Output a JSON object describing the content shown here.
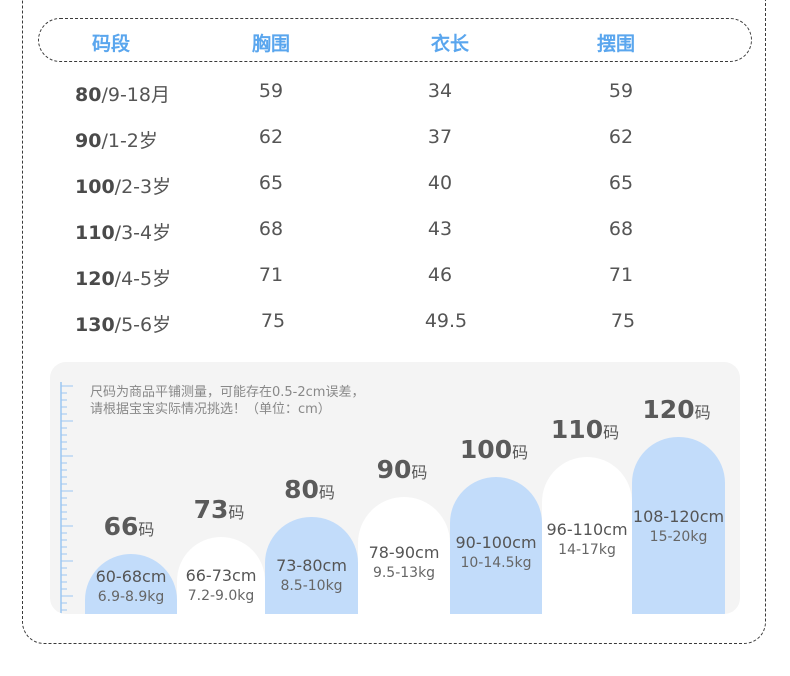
{
  "table": {
    "headers": [
      "码段",
      "胸围",
      "衣长",
      "摆围"
    ],
    "rows": [
      {
        "size": "80",
        "age": "/9-18月",
        "chest": "59",
        "length": "34",
        "hem": "59"
      },
      {
        "size": "90",
        "age": "/1-2岁",
        "chest": "62",
        "length": "37",
        "hem": "62"
      },
      {
        "size": "100",
        "age": "/2-3岁",
        "chest": "65",
        "length": "40",
        "hem": "65"
      },
      {
        "size": "110",
        "age": "/3-4岁",
        "chest": "68",
        "length": "43",
        "hem": "68"
      },
      {
        "size": "120",
        "age": "/4-5岁",
        "chest": "71",
        "length": "46",
        "hem": "71"
      },
      {
        "size": "130",
        "age": "/5-6岁",
        "chest": "75",
        "length": "49.5",
        "hem": "75"
      }
    ]
  },
  "chart": {
    "note_line1": "尺码为商品平铺测量，可能存在0.5-2cm误差，",
    "note_line2": "请根据宝宝实际情况挑选！（单位：cm）",
    "unit": "码",
    "bars": [
      {
        "code": "66",
        "range": "60-68cm",
        "weight": "6.9-8.9kg",
        "color": "#c2dcfa"
      },
      {
        "code": "73",
        "range": "66-73cm",
        "weight": "7.2-9.0kg",
        "color": "#ffffff"
      },
      {
        "code": "80",
        "range": "73-80cm",
        "weight": "8.5-10kg",
        "color": "#c2dcfa"
      },
      {
        "code": "90",
        "range": "78-90cm",
        "weight": "9.5-13kg",
        "color": "#ffffff"
      },
      {
        "code": "100",
        "range": "90-100cm",
        "weight": "10-14.5kg",
        "color": "#c2dcfa"
      },
      {
        "code": "110",
        "range": "96-110cm",
        "weight": "14-17kg",
        "color": "#ffffff"
      },
      {
        "code": "120",
        "range": "108-120cm",
        "weight": "15-20kg",
        "color": "#c2dcfa"
      }
    ]
  }
}
